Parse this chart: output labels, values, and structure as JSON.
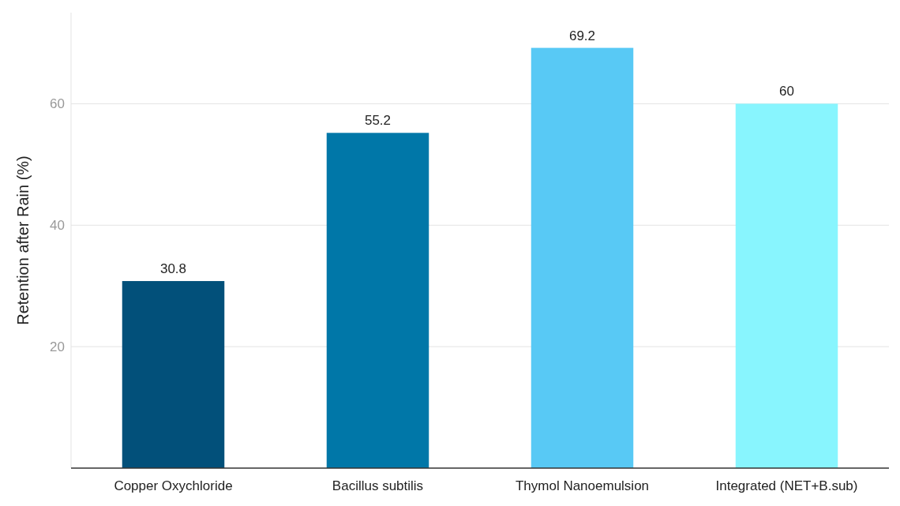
{
  "chart_data": {
    "type": "bar",
    "ylabel": "Retention after Rain (%)",
    "categories": [
      "Copper Oxychloride",
      "Bacillus subtilis",
      "Thymol Nanoemulsion",
      "Integrated (NET+B.sub)"
    ],
    "values": [
      30.8,
      55.2,
      69.2,
      60
    ],
    "colors": [
      "#02507a",
      "#0077a8",
      "#58c9f5",
      "#88f5fe"
    ],
    "ylim": [
      0,
      75
    ],
    "yticks": [
      20,
      40,
      60
    ],
    "grid": "y",
    "data_labels": true
  }
}
